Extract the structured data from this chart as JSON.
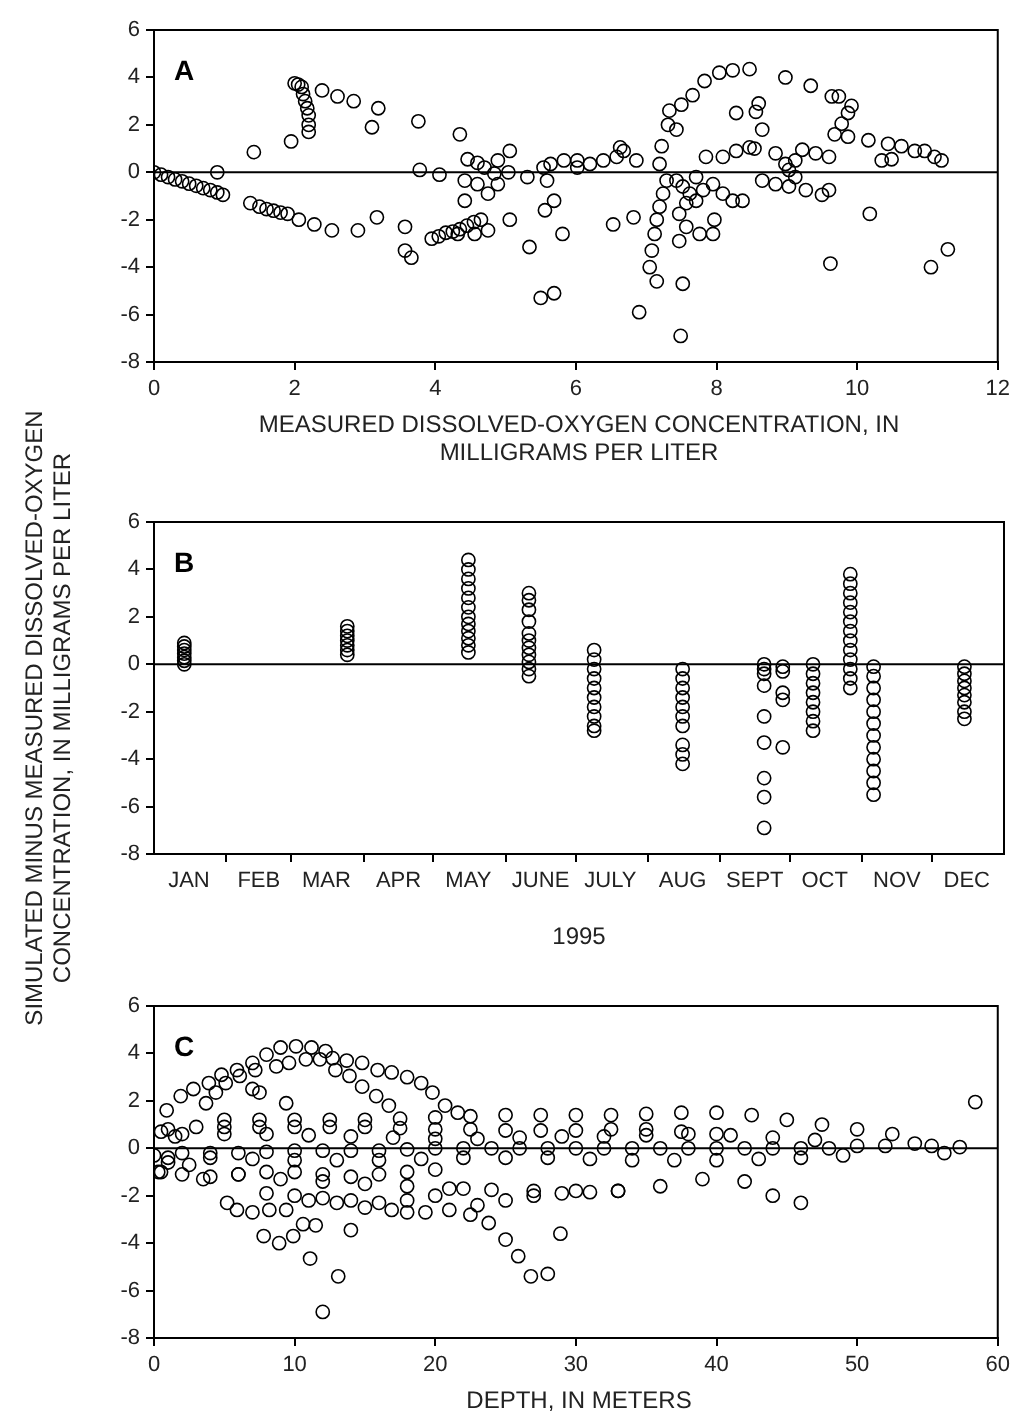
{
  "chart_data": [
    {
      "type": "scatter",
      "xlabel": "MEASURED DISSOLVED-OXYGEN CONCENTRATION, IN MILLIGRAMS PER LITER",
      "annotations": [
        "A"
      ],
      "marker": "circle",
      "xlim": [
        0,
        12
      ],
      "xticks": [
        0,
        2,
        4,
        6,
        8,
        10,
        12
      ],
      "ylim": [
        -8,
        6
      ],
      "yticks": [
        -8,
        -6,
        -4,
        -2,
        0,
        2,
        4,
        6
      ],
      "ref_lines": [
        {
          "axis": "y",
          "value": 0
        }
      ],
      "series": [
        {
          "color": "#000000",
          "x": [
            0,
            0.1,
            0.2,
            0.3,
            0.4,
            0.5,
            0.6,
            0.7,
            0.8,
            0.9,
            0.98,
            0.9,
            1.42,
            1.37,
            1.5,
            1.6,
            1.7,
            1.8,
            1.9,
            2.06,
            2.28,
            2.53,
            2.9,
            3.17,
            1.95,
            2.0,
            2.05,
            2.1,
            2.12,
            2.15,
            2.18,
            2.2,
            2.2,
            2.2,
            2.39,
            2.61,
            2.84,
            3.19,
            3.1,
            3.76,
            3.78,
            4.06,
            3.57,
            3.57,
            3.66,
            3.95,
            4.05,
            4.15,
            4.25,
            4.35,
            4.45,
            4.55,
            4.65,
            4.32,
            4.56,
            4.75,
            5.06,
            5.34,
            4.35,
            4.46,
            4.6,
            4.7,
            4.42,
            4.42,
            4.6,
            4.75,
            4.84,
            4.89,
            4.89,
            5.06,
            5.04,
            5.31,
            5.54,
            5.59,
            5.64,
            5.56,
            5.69,
            5.81,
            5.83,
            6.02,
            6.2,
            6.39,
            6.58,
            6.68,
            6.63,
            6.86,
            6.53,
            6.82,
            5.5,
            5.69,
            6.02,
            6.9,
            7.15,
            7.49,
            7.05,
            7.08,
            7.12,
            7.15,
            7.19,
            7.24,
            7.29,
            7.19,
            7.22,
            7.31,
            7.33,
            7.5,
            7.66,
            7.83,
            8.04,
            8.23,
            8.47,
            8.98,
            9.34,
            9.74,
            7.43,
            7.52,
            7.62,
            7.71,
            7.81,
            7.95,
            8.09,
            8.23,
            8.37,
            7.47,
            7.57,
            7.71,
            7.85,
            8.09,
            8.28,
            8.47,
            8.54,
            7.47,
            7.57,
            7.76,
            7.95,
            7.97,
            7.52,
            7.43,
            8.65,
            8.6,
            8.56,
            8.28,
            8.84,
            8.65,
            8.84,
            9.03,
            9.27,
            9.5,
            9.6,
            8.98,
            9.03,
            9.12,
            9.22,
            9.41,
            9.6,
            9.12,
            9.64,
            9.87,
            9.92,
            9.78,
            9.68,
            9.87,
            10.16,
            10.44,
            10.63,
            10.82,
            10.96,
            11.1,
            11.2,
            10.35,
            10.49,
            10.18,
            9.62,
            11.05,
            11.29
          ],
          "values": [
            0,
            -0.1,
            -0.2,
            -0.3,
            -0.38,
            -0.48,
            -0.57,
            -0.67,
            -0.75,
            -0.85,
            -0.95,
            0,
            0.85,
            -1.3,
            -1.45,
            -1.55,
            -1.62,
            -1.7,
            -1.75,
            -2.0,
            -2.2,
            -2.45,
            -2.45,
            -1.9,
            1.3,
            3.75,
            3.7,
            3.6,
            3.3,
            3.0,
            2.7,
            2.4,
            2.0,
            1.7,
            3.45,
            3.2,
            3.0,
            2.7,
            1.9,
            2.15,
            0.1,
            -0.1,
            -2.3,
            -3.3,
            -3.6,
            -2.8,
            -2.7,
            -2.55,
            -2.5,
            -2.4,
            -2.25,
            -2.1,
            -2.0,
            -2.6,
            -2.6,
            -2.45,
            -2.0,
            -3.15,
            1.6,
            0.55,
            0.4,
            0.2,
            -0.35,
            -1.2,
            -0.5,
            -0.9,
            -0.05,
            -0.5,
            0.5,
            0.9,
            0,
            -0.2,
            0.2,
            -0.35,
            0.35,
            -1.6,
            -1.2,
            -2.6,
            0.5,
            0.5,
            0.35,
            0.5,
            0.65,
            0.9,
            1.05,
            0.5,
            -2.2,
            -1.9,
            -5.3,
            -5.1,
            0.2,
            -5.9,
            -4.6,
            -6.9,
            -4.0,
            -3.3,
            -2.6,
            -2.0,
            -1.45,
            -0.9,
            -0.35,
            0.35,
            1.1,
            2.0,
            2.6,
            2.85,
            3.25,
            3.85,
            4.2,
            4.3,
            4.35,
            4.0,
            3.65,
            3.2,
            -0.35,
            -0.6,
            -0.9,
            -1.2,
            -0.75,
            -0.5,
            -0.9,
            -1.2,
            -1.2,
            -1.75,
            -1.3,
            -0.2,
            0.65,
            0.65,
            0.9,
            1.05,
            1.0,
            -2.9,
            -2.3,
            -2.6,
            -2.6,
            -2.0,
            -4.7,
            1.8,
            1.8,
            2.9,
            2.55,
            2.5,
            0.8,
            -0.35,
            -0.5,
            -0.6,
            -0.75,
            -0.95,
            -0.75,
            0.35,
            0.1,
            -0.2,
            0.95,
            0.8,
            0.65,
            0.5,
            3.2,
            2.5,
            2.8,
            2.05,
            1.6,
            1.5,
            1.35,
            1.2,
            1.1,
            0.9,
            0.9,
            0.65,
            0.5,
            0.5,
            0.55,
            -1.75,
            -3.85,
            -4.0,
            -3.25
          ]
        }
      ]
    },
    {
      "type": "scatter",
      "xlabel": "1995",
      "ylabel": "SIMULATED MINUS MEASURED DISSOLVED-OXYGEN CONCENTRATION, IN MILLIGRAMS PER LITER",
      "annotations": [
        "B"
      ],
      "marker": "circle",
      "xlim": [
        "1995-01-01",
        "1996-01-01"
      ],
      "xticks": [
        {
          "value": "1995-01-16",
          "label": "JAN"
        },
        {
          "value": "1995-02-01",
          "label": null
        },
        {
          "value": "1995-02-15",
          "label": "FEB"
        },
        {
          "value": "1995-03-01",
          "label": null
        },
        {
          "value": "1995-03-16",
          "label": "MAR"
        },
        {
          "value": "1995-04-01",
          "label": null
        },
        {
          "value": "1995-04-16",
          "label": "APR"
        },
        {
          "value": "1995-05-01",
          "label": null
        },
        {
          "value": "1995-05-16",
          "label": "MAY"
        },
        {
          "value": "1995-06-01",
          "label": null
        },
        {
          "value": "1995-06-16",
          "label": "JUNE"
        },
        {
          "value": "1995-07-01",
          "label": null
        },
        {
          "value": "1995-07-16",
          "label": "JULY"
        },
        {
          "value": "1995-08-01",
          "label": null
        },
        {
          "value": "1995-08-16",
          "label": "AUG"
        },
        {
          "value": "1995-09-01",
          "label": null
        },
        {
          "value": "1995-09-16",
          "label": "SEPT"
        },
        {
          "value": "1995-10-01",
          "label": null
        },
        {
          "value": "1995-10-16",
          "label": "OCT"
        },
        {
          "value": "1995-11-01",
          "label": null
        },
        {
          "value": "1995-11-16",
          "label": "NOV"
        },
        {
          "value": "1995-12-01",
          "label": null
        },
        {
          "value": "1995-12-16",
          "label": "DEC"
        }
      ],
      "ylim": [
        -8,
        6
      ],
      "yticks": [
        -8,
        -6,
        -4,
        -2,
        0,
        2,
        4,
        6
      ],
      "ref_lines": [
        {
          "axis": "y",
          "value": 0
        }
      ],
      "series": [
        {
          "color": "#000000",
          "x": [
            "1995-01-14",
            "1995-01-14",
            "1995-01-14",
            "1995-01-14",
            "1995-01-14",
            "1995-01-14",
            "1995-01-14",
            "1995-03-25",
            "1995-03-25",
            "1995-03-25",
            "1995-03-25",
            "1995-03-25",
            "1995-03-25",
            "1995-03-25",
            "1995-05-16",
            "1995-05-16",
            "1995-05-16",
            "1995-05-16",
            "1995-05-16",
            "1995-05-16",
            "1995-05-16",
            "1995-05-16",
            "1995-05-16",
            "1995-05-16",
            "1995-05-16",
            "1995-05-16",
            "1995-06-11",
            "1995-06-11",
            "1995-06-11",
            "1995-06-11",
            "1995-06-11",
            "1995-06-11",
            "1995-06-11",
            "1995-06-11",
            "1995-06-11",
            "1995-06-11",
            "1995-06-11",
            "1995-07-09",
            "1995-07-09",
            "1995-07-09",
            "1995-07-09",
            "1995-07-09",
            "1995-07-09",
            "1995-07-09",
            "1995-07-09",
            "1995-07-09",
            "1995-07-09",
            "1995-08-16",
            "1995-08-16",
            "1995-08-16",
            "1995-08-16",
            "1995-08-16",
            "1995-08-16",
            "1995-08-16",
            "1995-08-16",
            "1995-08-16",
            "1995-08-16",
            "1995-09-20",
            "1995-09-20",
            "1995-09-20",
            "1995-09-20",
            "1995-09-20",
            "1995-09-20",
            "1995-09-20",
            "1995-09-20",
            "1995-09-20",
            "1995-09-28",
            "1995-09-28",
            "1995-09-28",
            "1995-09-28",
            "1995-09-28",
            "1995-10-11",
            "1995-10-11",
            "1995-10-11",
            "1995-10-11",
            "1995-10-11",
            "1995-10-11",
            "1995-10-11",
            "1995-10-11",
            "1995-10-27",
            "1995-10-27",
            "1995-10-27",
            "1995-10-27",
            "1995-10-27",
            "1995-10-27",
            "1995-10-27",
            "1995-10-27",
            "1995-10-27",
            "1995-10-27",
            "1995-10-27",
            "1995-10-27",
            "1995-10-27",
            "1995-11-06",
            "1995-11-06",
            "1995-11-06",
            "1995-11-06",
            "1995-11-06",
            "1995-11-06",
            "1995-11-06",
            "1995-11-06",
            "1995-11-06",
            "1995-11-06",
            "1995-11-06",
            "1995-11-06",
            "1995-12-15",
            "1995-12-15",
            "1995-12-15",
            "1995-12-15",
            "1995-12-15",
            "1995-12-15",
            "1995-12-15",
            "1995-12-15"
          ],
          "values": [
            0,
            0.15,
            0.3,
            0.45,
            0.6,
            0.75,
            0.9,
            0.4,
            0.6,
            0.8,
            1.0,
            1.2,
            1.4,
            1.6,
            0.5,
            0.8,
            1.1,
            1.4,
            1.7,
            2.0,
            2.4,
            2.8,
            3.2,
            3.6,
            4.0,
            4.4,
            -0.5,
            -0.2,
            0.1,
            0.4,
            0.7,
            1.0,
            1.3,
            1.8,
            2.3,
            2.7,
            3.0,
            0.6,
            0.2,
            -0.2,
            -0.6,
            -1.0,
            -1.4,
            -1.8,
            -2.2,
            -2.6,
            -2.8,
            -0.2,
            -0.6,
            -1.0,
            -1.4,
            -1.8,
            -2.2,
            -2.6,
            -3.4,
            -3.8,
            -4.2,
            0,
            -0.2,
            -0.4,
            -0.9,
            -2.2,
            -3.3,
            -4.8,
            -5.6,
            -6.9,
            -0.1,
            -0.3,
            -1.2,
            -1.5,
            -3.5,
            0,
            -0.4,
            -0.8,
            -1.2,
            -1.6,
            -2.0,
            -2.4,
            -2.8,
            3.8,
            3.4,
            3.0,
            2.6,
            2.2,
            1.8,
            1.4,
            1.0,
            0.6,
            0.2,
            -0.2,
            -0.6,
            -1.0,
            -0.1,
            -0.5,
            -1.0,
            -1.5,
            -2.0,
            -2.5,
            -3.0,
            -3.5,
            -4.0,
            -4.5,
            -5.0,
            -5.5,
            -0.1,
            -0.4,
            -0.7,
            -1.0,
            -1.3,
            -1.6,
            -2.0,
            -2.3
          ]
        }
      ]
    },
    {
      "type": "scatter",
      "xlabel": "DEPTH, IN METERS",
      "annotations": [
        "C"
      ],
      "marker": "circle",
      "xlim": [
        0,
        60
      ],
      "xticks": [
        0,
        10,
        20,
        30,
        40,
        50,
        60
      ],
      "ylim": [
        -8,
        6
      ],
      "yticks": [
        -8,
        -6,
        -4,
        -2,
        0,
        2,
        4,
        6
      ],
      "ref_lines": [
        {
          "axis": "y",
          "value": 0
        }
      ],
      "series": [
        {
          "color": "#000000",
          "x": [
            0.9,
            1.9,
            2.8,
            3.9,
            4.8,
            5.9,
            7,
            8,
            9,
            10.1,
            11.2,
            12.2,
            12.7,
            13.7,
            14.8,
            15.9,
            16.9,
            18,
            19,
            19.8,
            20.7,
            21.6,
            3.7,
            4.4,
            5.1,
            6.1,
            7.2,
            8.7,
            9.6,
            10.8,
            11.8,
            12.9,
            13.9,
            14.8,
            15.8,
            16.7,
            7,
            7.5,
            9.4,
            5,
            7.5,
            10,
            12.5,
            15,
            17.5,
            20,
            22.5,
            25,
            27.5,
            30,
            32.5,
            35,
            37.5,
            40,
            42.5,
            45,
            47.5,
            50,
            52.5,
            1,
            3,
            5,
            7.5,
            10,
            12.5,
            15,
            17.5,
            20,
            22.5,
            25,
            27.5,
            30,
            32.5,
            35,
            37.5,
            40,
            2,
            5,
            8,
            11,
            14,
            17,
            20,
            23,
            26,
            29,
            32,
            35,
            38,
            41,
            44,
            47,
            0,
            2,
            4,
            6,
            8,
            10,
            12,
            14,
            16,
            18,
            20,
            22,
            24,
            26,
            28,
            30,
            32,
            34,
            36,
            38,
            40,
            42,
            44,
            46,
            48,
            1,
            4,
            7,
            10,
            13,
            16,
            19,
            22,
            25,
            28,
            31,
            34,
            37,
            40,
            43,
            46,
            49,
            0.5,
            2,
            4,
            6,
            8,
            10,
            12,
            14,
            16,
            18,
            20,
            6,
            9,
            12,
            15,
            18,
            21,
            24,
            27,
            30,
            33,
            36,
            39,
            42,
            44,
            46,
            8,
            10,
            12,
            14,
            16,
            18,
            20,
            22,
            5.2,
            5.9,
            7,
            8.2,
            9.4,
            11,
            13,
            15,
            16.9,
            18,
            19.3,
            21,
            23,
            25,
            27,
            29,
            31,
            33,
            22.5,
            23.8,
            25,
            25.9,
            26.8,
            28,
            28.9,
            7.8,
            8.9,
            9.9,
            10.6,
            11.1,
            13.1,
            14,
            11.5,
            12,
            50,
            52,
            54.1,
            55.3,
            56.2,
            57.3,
            58.4,
            0.3,
            0.5,
            1.5,
            2.5,
            3.5,
            1
          ],
          "values": [
            1.6,
            2.2,
            2.5,
            2.75,
            3.1,
            3.3,
            3.6,
            3.95,
            4.25,
            4.3,
            4.25,
            4.1,
            3.8,
            3.7,
            3.6,
            3.3,
            3.2,
            3.0,
            2.75,
            2.35,
            1.8,
            1.5,
            1.9,
            2.35,
            2.75,
            3.05,
            3.3,
            3.45,
            3.6,
            3.75,
            3.75,
            3.3,
            3.05,
            2.6,
            2.2,
            1.8,
            2.5,
            2.35,
            1.9,
            1.2,
            1.2,
            1.2,
            1.2,
            1.2,
            1.25,
            1.3,
            1.35,
            1.4,
            1.4,
            1.4,
            1.4,
            1.45,
            1.5,
            1.5,
            1.4,
            1.2,
            1.0,
            0.8,
            0.6,
            0.8,
            0.9,
            0.9,
            0.9,
            0.9,
            0.9,
            0.9,
            0.85,
            0.8,
            0.8,
            0.75,
            0.75,
            0.75,
            0.8,
            0.8,
            0.7,
            0.6,
            0.6,
            0.6,
            0.6,
            0.55,
            0.5,
            0.45,
            0.4,
            0.4,
            0.45,
            0.5,
            0.5,
            0.55,
            0.6,
            0.55,
            0.45,
            0.35,
            -0.3,
            -0.2,
            -0.2,
            -0.2,
            -0.15,
            -0.1,
            -0.1,
            -0.1,
            -0.1,
            -0.05,
            0,
            0,
            0,
            0,
            0,
            0,
            0,
            0,
            0,
            0,
            0,
            0,
            0,
            0,
            0,
            -0.4,
            -0.4,
            -0.45,
            -0.5,
            -0.5,
            -0.5,
            -0.45,
            -0.4,
            -0.4,
            -0.4,
            -0.45,
            -0.5,
            -0.5,
            -0.5,
            -0.45,
            -0.4,
            -0.3,
            -1.0,
            -1.1,
            -1.2,
            -1.1,
            -1.0,
            -1.0,
            -1.1,
            -1.2,
            -1.1,
            -1.0,
            -0.9,
            -1.1,
            -1.3,
            -1.4,
            -1.5,
            -1.6,
            -1.7,
            -1.75,
            -1.8,
            -1.8,
            -1.8,
            -1.6,
            -1.3,
            -1.4,
            -2.0,
            -2.3,
            -1.9,
            -2.0,
            -2.1,
            -2.2,
            -2.3,
            -2.2,
            -2.0,
            -1.7,
            -2.3,
            -2.6,
            -2.7,
            -2.6,
            -2.6,
            -2.2,
            -2.3,
            -2.5,
            -2.6,
            -2.7,
            -2.7,
            -2.6,
            -2.4,
            -2.2,
            -2.0,
            -1.9,
            -1.85,
            -1.8,
            -2.8,
            -3.15,
            -3.85,
            -4.55,
            -5.4,
            -5.3,
            -3.6,
            -3.7,
            -4.0,
            -3.7,
            -3.2,
            -4.65,
            -5.4,
            -3.45,
            -3.25,
            -6.9,
            0.1,
            0.1,
            0.2,
            0.1,
            -0.2,
            0.05,
            1.95,
            -1.0,
            0.7,
            0.5,
            -0.7,
            -1.3,
            -0.6
          ]
        }
      ]
    }
  ]
}
